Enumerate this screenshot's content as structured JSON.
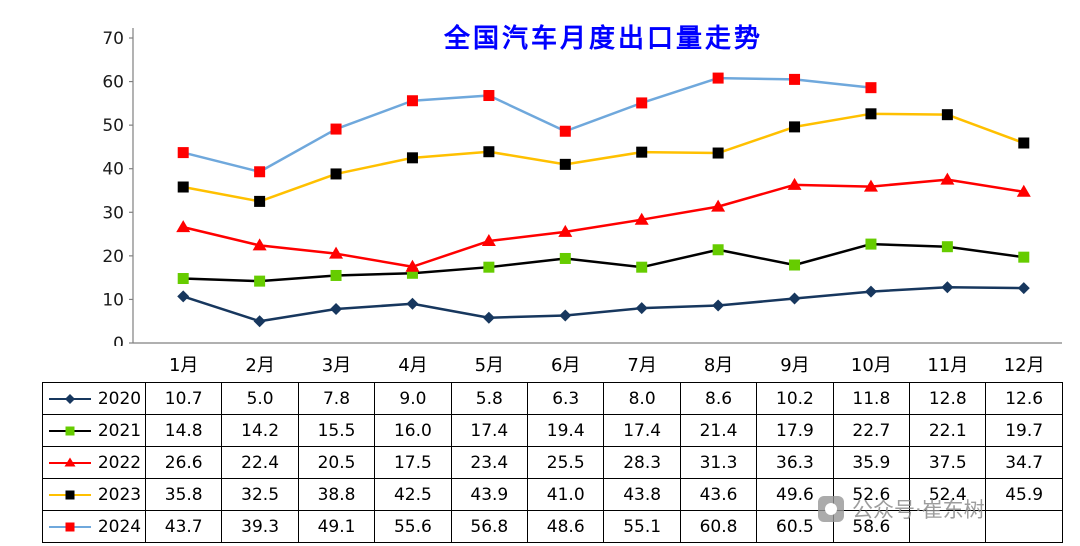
{
  "title": "全国汽车月度出口量走势",
  "watermark": {
    "text": "公众号·崔东树"
  },
  "chart_data": {
    "type": "line",
    "title": "全国汽车月度出口量走势",
    "categories": [
      "1月",
      "2月",
      "3月",
      "4月",
      "5月",
      "6月",
      "7月",
      "8月",
      "9月",
      "10月",
      "11月",
      "12月"
    ],
    "xlabel": "",
    "ylabel": "",
    "ylim": [
      0,
      70
    ],
    "yticks": [
      0,
      10,
      20,
      30,
      40,
      50,
      60,
      70
    ],
    "grid": false,
    "legend_position": "table-left",
    "series": [
      {
        "name": "2020",
        "line_color": "#17375E",
        "marker": "diamond",
        "marker_color": "#17375E",
        "values": [
          10.7,
          5.0,
          7.8,
          9.0,
          5.8,
          6.3,
          8.0,
          8.6,
          10.2,
          11.8,
          12.8,
          12.6
        ]
      },
      {
        "name": "2021",
        "line_color": "#000000",
        "marker": "square",
        "marker_color": "#66CC00",
        "values": [
          14.8,
          14.2,
          15.5,
          16.0,
          17.4,
          19.4,
          17.4,
          21.4,
          17.9,
          22.7,
          22.1,
          19.7
        ]
      },
      {
        "name": "2022",
        "line_color": "#FF0000",
        "marker": "triangle",
        "marker_color": "#FF0000",
        "values": [
          26.6,
          22.4,
          20.5,
          17.5,
          23.4,
          25.5,
          28.3,
          31.3,
          36.3,
          35.9,
          37.5,
          34.7
        ]
      },
      {
        "name": "2023",
        "line_color": "#FFC000",
        "marker": "square",
        "marker_color": "#000000",
        "values": [
          35.8,
          32.5,
          38.8,
          42.5,
          43.9,
          41.0,
          43.8,
          43.6,
          49.6,
          52.6,
          52.4,
          45.9
        ]
      },
      {
        "name": "2024",
        "line_color": "#6FA8DC",
        "marker": "square",
        "marker_color": "#FF0000",
        "values": [
          43.7,
          39.3,
          49.1,
          55.6,
          56.8,
          48.6,
          55.1,
          60.8,
          60.5,
          58.6,
          null,
          null
        ]
      }
    ]
  }
}
